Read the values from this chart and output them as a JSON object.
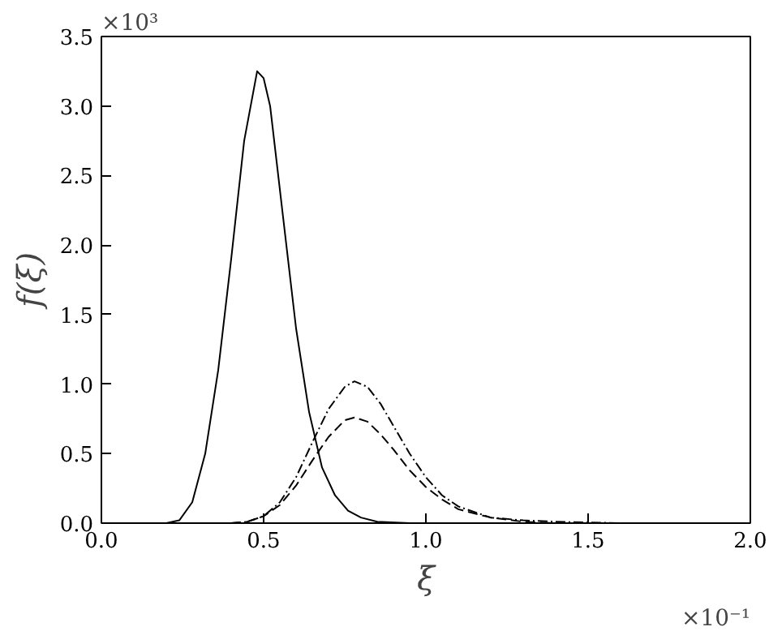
{
  "chart_data": {
    "type": "line",
    "xlabel": "ξ",
    "ylabel": "f(ξ)",
    "xlim": [
      0,
      2.0
    ],
    "ylim": [
      0,
      3.5
    ],
    "xticks": [
      {
        "value": 0,
        "label": "0.0"
      },
      {
        "value": 0.5,
        "label": "0.5"
      },
      {
        "value": 1.0,
        "label": "1.0"
      },
      {
        "value": 1.5,
        "label": "1.5"
      },
      {
        "value": 2.0,
        "label": "2.0"
      }
    ],
    "yticks": [
      {
        "value": 0,
        "label": "0.0"
      },
      {
        "value": 0.5,
        "label": "0.5"
      },
      {
        "value": 1.0,
        "label": "1.0"
      },
      {
        "value": 1.5,
        "label": "1.5"
      },
      {
        "value": 2.0,
        "label": "2.0"
      },
      {
        "value": 2.5,
        "label": "2.5"
      },
      {
        "value": 3.0,
        "label": "3.0"
      },
      {
        "value": 3.5,
        "label": "3.5"
      }
    ],
    "annotations": [
      "×10³",
      "×10⁻¹"
    ],
    "grid": false,
    "series": [
      {
        "color": "#000000",
        "line_style": "solid",
        "x": [
          0.0,
          0.2,
          0.24,
          0.28,
          0.32,
          0.36,
          0.4,
          0.44,
          0.48,
          0.5,
          0.52,
          0.56,
          0.6,
          0.64,
          0.68,
          0.72,
          0.76,
          0.8,
          0.85,
          0.95,
          1.0
        ],
        "values": [
          0,
          0,
          0.02,
          0.15,
          0.5,
          1.1,
          1.9,
          2.75,
          3.25,
          3.2,
          3.0,
          2.2,
          1.4,
          0.8,
          0.4,
          0.2,
          0.09,
          0.04,
          0.01,
          0,
          0
        ]
      },
      {
        "color": "#000000",
        "line_style": "dashdot",
        "x": [
          0.4,
          0.45,
          0.5,
          0.55,
          0.6,
          0.65,
          0.7,
          0.75,
          0.78,
          0.82,
          0.86,
          0.9,
          0.95,
          1.0,
          1.05,
          1.1,
          1.2,
          1.3,
          1.4,
          1.6
        ],
        "values": [
          0,
          0.01,
          0.05,
          0.15,
          0.33,
          0.58,
          0.82,
          0.98,
          1.02,
          0.98,
          0.86,
          0.7,
          0.5,
          0.33,
          0.2,
          0.12,
          0.04,
          0.02,
          0.01,
          0
        ]
      },
      {
        "color": "#000000",
        "line_style": "dashed",
        "x": [
          0.4,
          0.45,
          0.5,
          0.55,
          0.6,
          0.65,
          0.7,
          0.75,
          0.78,
          0.82,
          0.86,
          0.9,
          0.95,
          1.0,
          1.05,
          1.1,
          1.2,
          1.3,
          1.4,
          1.6
        ],
        "values": [
          0,
          0.01,
          0.05,
          0.13,
          0.27,
          0.45,
          0.62,
          0.74,
          0.76,
          0.73,
          0.64,
          0.53,
          0.38,
          0.26,
          0.17,
          0.1,
          0.04,
          0.01,
          0,
          0
        ]
      }
    ]
  }
}
